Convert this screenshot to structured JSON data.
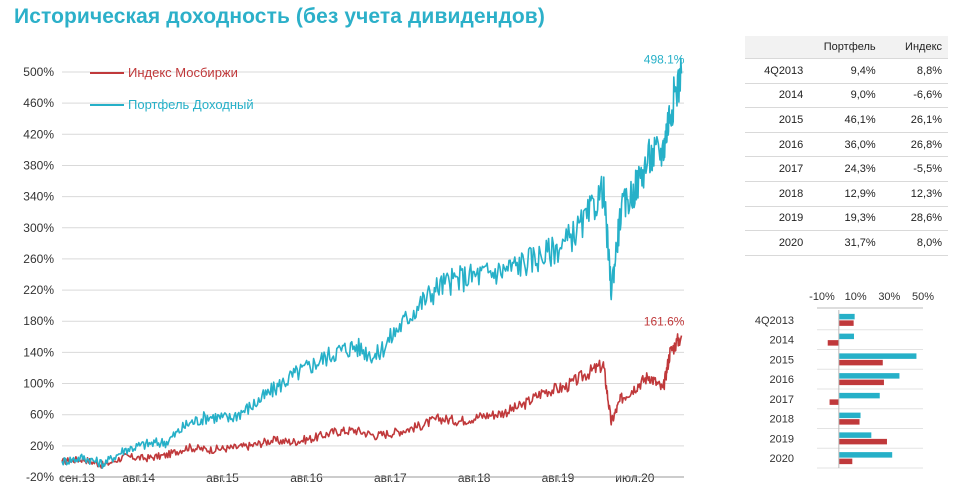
{
  "page": {
    "title": "Историческая доходность (без учета дивидендов)"
  },
  "colors": {
    "portfolio": "#26b0c8",
    "index": "#c0393b",
    "title": "#2cb0c9"
  },
  "chart_data": [
    {
      "type": "line",
      "title": "",
      "ylim": [
        -20,
        500
      ],
      "yticks": [
        -20,
        20,
        60,
        100,
        140,
        180,
        220,
        260,
        300,
        340,
        380,
        420,
        460,
        500
      ],
      "ytick_labels": [
        "-20%",
        "20%",
        "60%",
        "100%",
        "140%",
        "180%",
        "220%",
        "260%",
        "300%",
        "340%",
        "380%",
        "420%",
        "460%",
        "500%"
      ],
      "xlim": [
        "2013-09-01",
        "2021-01-31"
      ],
      "xticks": [
        "2013-09-01",
        "2014-08-01",
        "2015-08-01",
        "2016-08-01",
        "2017-08-01",
        "2018-08-01",
        "2019-08-01",
        "2020-07-01"
      ],
      "xtick_labels": [
        "сен.13",
        "авг.14",
        "авг.15",
        "авг.16",
        "авг.17",
        "авг.18",
        "авг.19",
        "июл.20"
      ],
      "grid": "horizontal",
      "legend": "top-left",
      "series": [
        {
          "name": "Индекс Мосбиржи",
          "end_label": "161.6%",
          "points": [
            [
              "2013-09-01",
              0
            ],
            [
              "2013-12-01",
              3
            ],
            [
              "2014-03-01",
              -5
            ],
            [
              "2014-06-01",
              6
            ],
            [
              "2014-09-01",
              4
            ],
            [
              "2014-12-01",
              8
            ],
            [
              "2015-03-01",
              18
            ],
            [
              "2015-06-01",
              15
            ],
            [
              "2015-09-01",
              17
            ],
            [
              "2015-12-01",
              20
            ],
            [
              "2016-03-01",
              27
            ],
            [
              "2016-06-01",
              25
            ],
            [
              "2016-09-01",
              30
            ],
            [
              "2016-12-01",
              38
            ],
            [
              "2017-03-01",
              40
            ],
            [
              "2017-06-01",
              33
            ],
            [
              "2017-09-01",
              38
            ],
            [
              "2017-12-01",
              45
            ],
            [
              "2018-03-01",
              55
            ],
            [
              "2018-06-01",
              52
            ],
            [
              "2018-09-01",
              58
            ],
            [
              "2018-12-01",
              62
            ],
            [
              "2019-03-01",
              72
            ],
            [
              "2019-06-01",
              90
            ],
            [
              "2019-09-01",
              95
            ],
            [
              "2019-12-01",
              112
            ],
            [
              "2020-02-15",
              124
            ],
            [
              "2020-03-20",
              50
            ],
            [
              "2020-05-01",
              80
            ],
            [
              "2020-07-01",
              95
            ],
            [
              "2020-09-01",
              110
            ],
            [
              "2020-11-01",
              92
            ],
            [
              "2020-12-01",
              140
            ],
            [
              "2021-01-20",
              161.6
            ]
          ]
        },
        {
          "name": "Портфель Доходный",
          "end_label": "498.1%",
          "points": [
            [
              "2013-09-01",
              0
            ],
            [
              "2013-12-01",
              5
            ],
            [
              "2014-03-01",
              -3
            ],
            [
              "2014-06-01",
              15
            ],
            [
              "2014-09-01",
              22
            ],
            [
              "2014-12-01",
              25
            ],
            [
              "2015-03-01",
              48
            ],
            [
              "2015-06-01",
              58
            ],
            [
              "2015-09-01",
              55
            ],
            [
              "2015-12-01",
              70
            ],
            [
              "2016-03-01",
              90
            ],
            [
              "2016-06-01",
              110
            ],
            [
              "2016-09-01",
              125
            ],
            [
              "2016-12-01",
              140
            ],
            [
              "2017-03-01",
              148
            ],
            [
              "2017-06-01",
              135
            ],
            [
              "2017-09-01",
              170
            ],
            [
              "2017-12-01",
              200
            ],
            [
              "2018-03-01",
              225
            ],
            [
              "2018-06-01",
              235
            ],
            [
              "2018-09-01",
              240
            ],
            [
              "2018-12-01",
              245
            ],
            [
              "2019-03-01",
              255
            ],
            [
              "2019-06-01",
              265
            ],
            [
              "2019-09-01",
              280
            ],
            [
              "2019-12-01",
              310
            ],
            [
              "2020-02-15",
              350
            ],
            [
              "2020-03-20",
              220
            ],
            [
              "2020-05-01",
              320
            ],
            [
              "2020-07-01",
              350
            ],
            [
              "2020-09-01",
              390
            ],
            [
              "2020-11-01",
              400
            ],
            [
              "2020-12-01",
              450
            ],
            [
              "2021-01-20",
              498.1
            ]
          ]
        }
      ]
    },
    {
      "type": "bar",
      "orientation": "horizontal",
      "categories": [
        "4Q2013",
        "2014",
        "2015",
        "2016",
        "2017",
        "2018",
        "2019",
        "2020"
      ],
      "xlim": [
        -10,
        50
      ],
      "xticks": [
        -10,
        10,
        30,
        50
      ],
      "xtick_labels": [
        "-10%",
        "10%",
        "30%",
        "50%"
      ],
      "series": [
        {
          "name": "Портфель",
          "values": [
            9.4,
            9.0,
            46.1,
            36.0,
            24.3,
            12.9,
            19.3,
            31.7
          ]
        },
        {
          "name": "Индекс",
          "values": [
            8.8,
            -6.6,
            26.1,
            26.8,
            -5.5,
            12.3,
            28.6,
            8.0
          ]
        }
      ]
    }
  ],
  "table": {
    "headers": [
      "",
      "Портфель",
      "Индекс"
    ],
    "rows": [
      [
        "4Q2013",
        "9,4%",
        "8,8%"
      ],
      [
        "2014",
        "9,0%",
        "-6,6%"
      ],
      [
        "2015",
        "46,1%",
        "26,1%"
      ],
      [
        "2016",
        "36,0%",
        "26,8%"
      ],
      [
        "2017",
        "24,3%",
        "-5,5%"
      ],
      [
        "2018",
        "12,9%",
        "12,3%"
      ],
      [
        "2019",
        "19,3%",
        "28,6%"
      ],
      [
        "2020",
        "31,7%",
        "8,0%"
      ]
    ]
  }
}
